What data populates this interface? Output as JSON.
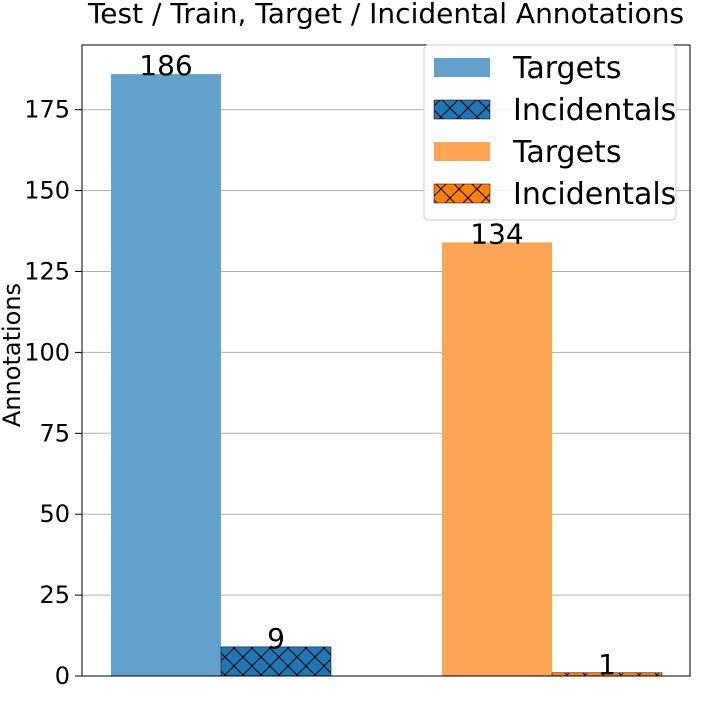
{
  "chart_data": {
    "type": "bar",
    "title": "Test / Train, Target / Incidental Annotations",
    "xlabel": "",
    "ylabel": "Annotations",
    "ylim": [
      0,
      195
    ],
    "yticks": [
      0,
      25,
      50,
      75,
      100,
      125,
      150,
      175
    ],
    "grid": "y",
    "legend_position": "top-right",
    "groups": 2,
    "series": [
      {
        "name": "Targets",
        "group": 0,
        "values": [
          186
        ],
        "color": "#63a1cc",
        "hatch": false,
        "value_label": "186"
      },
      {
        "name": "Incidentals",
        "group": 0,
        "values": [
          9
        ],
        "color": "#1f77b4",
        "hatch": true,
        "value_label": "9"
      },
      {
        "name": "Targets",
        "group": 1,
        "values": [
          134
        ],
        "color": "#ffa556",
        "hatch": false,
        "value_label": "134"
      },
      {
        "name": "Incidentals",
        "group": 1,
        "values": [
          1
        ],
        "color": "#ff7f0e",
        "hatch": true,
        "value_label": "1"
      }
    ]
  }
}
